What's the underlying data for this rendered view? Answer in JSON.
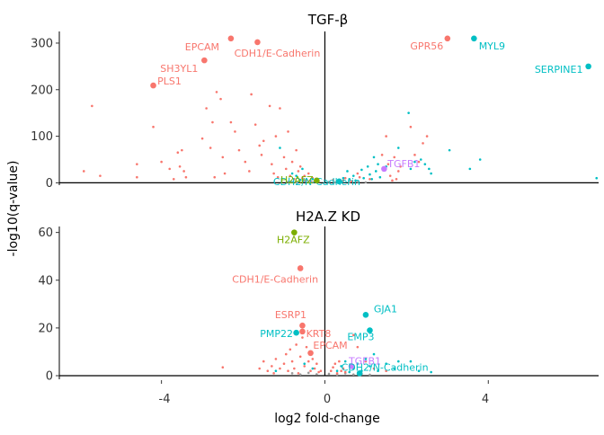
{
  "chart_data": {
    "type": "scatter",
    "xlabel": "log2 fold-change",
    "ylabel": "-log10(q-value)",
    "x_ticks": [
      -4,
      0,
      4
    ],
    "xlim": [
      -6.5,
      6.7
    ],
    "colors": {
      "epithelial": "#F8766D",
      "h2afz": "#7CAE00",
      "mesenchymal": "#00BFC4",
      "tgfb": "#C77CFF",
      "axis": "#000000"
    },
    "panels": [
      {
        "title": "TGF-β",
        "ylim": [
          -5,
          325
        ],
        "y_ticks": [
          0,
          100,
          200,
          300
        ],
        "highlights": [
          {
            "label": "EPCAM",
            "x": -2.3,
            "y": 310,
            "color": "epithelial",
            "dx": -32,
            "dy": 13
          },
          {
            "label": "CDH1/E-Cadherin",
            "x": -1.65,
            "y": 302,
            "color": "epithelial",
            "dx": 22,
            "dy": 16
          },
          {
            "label": "SH3YL1",
            "x": -2.95,
            "y": 263,
            "color": "epithelial",
            "dx": -28,
            "dy": 13
          },
          {
            "label": "PLS1",
            "x": -4.2,
            "y": 209,
            "color": "epithelial",
            "dx": 18,
            "dy": -1
          },
          {
            "label": "GPR56",
            "x": 3.0,
            "y": 310,
            "color": "epithelial",
            "dx": -23,
            "dy": 12
          },
          {
            "label": "MYL9",
            "x": 3.65,
            "y": 310,
            "color": "mesenchymal",
            "dx": 20,
            "dy": 12
          },
          {
            "label": "SERPINE1",
            "x": 6.45,
            "y": 250,
            "color": "mesenchymal",
            "dx": -33,
            "dy": 7
          },
          {
            "label": "TGFB1",
            "x": 1.45,
            "y": 30,
            "color": "tgfb",
            "dx": 22,
            "dy": -2
          },
          {
            "label": "CDH2/N-Cadherin",
            "x": 0.35,
            "y": 3,
            "color": "mesenchymal",
            "dx": -25,
            "dy": 4
          },
          {
            "label": "H2AFZ",
            "x": -0.2,
            "y": 5,
            "color": "h2afz",
            "dx": -22,
            "dy": 3
          }
        ],
        "points_red": [
          [
            -5.7,
            165
          ],
          [
            -5.9,
            25
          ],
          [
            -5.5,
            15
          ],
          [
            -4.6,
            40
          ],
          [
            -4.6,
            12
          ],
          [
            -4.2,
            120
          ],
          [
            -4.0,
            45
          ],
          [
            -3.8,
            30
          ],
          [
            -3.7,
            8
          ],
          [
            -3.6,
            65
          ],
          [
            -3.5,
            70
          ],
          [
            -3.55,
            35
          ],
          [
            -3.45,
            25
          ],
          [
            -3.4,
            12
          ],
          [
            -3.0,
            95
          ],
          [
            -2.9,
            160
          ],
          [
            -2.8,
            75
          ],
          [
            -2.75,
            130
          ],
          [
            -2.7,
            12
          ],
          [
            -2.65,
            195
          ],
          [
            -2.55,
            180
          ],
          [
            -2.5,
            55
          ],
          [
            -2.45,
            20
          ],
          [
            -2.3,
            130
          ],
          [
            -2.2,
            110
          ],
          [
            -2.1,
            70
          ],
          [
            -1.95,
            45
          ],
          [
            -1.85,
            25
          ],
          [
            -1.8,
            190
          ],
          [
            -1.7,
            125
          ],
          [
            -1.6,
            80
          ],
          [
            -1.55,
            60
          ],
          [
            -1.5,
            90
          ],
          [
            -1.35,
            165
          ],
          [
            -1.3,
            40
          ],
          [
            -1.25,
            20
          ],
          [
            -1.2,
            100
          ],
          [
            -1.15,
            12
          ],
          [
            -1.1,
            160
          ],
          [
            -1.0,
            55
          ],
          [
            -0.95,
            30
          ],
          [
            -0.9,
            110
          ],
          [
            -0.85,
            15
          ],
          [
            -0.8,
            45
          ],
          [
            -0.75,
            8
          ],
          [
            -0.7,
            70
          ],
          [
            -0.65,
            25
          ],
          [
            -0.6,
            35
          ],
          [
            -0.55,
            10
          ],
          [
            -0.5,
            15
          ],
          [
            -0.45,
            6
          ],
          [
            -0.4,
            20
          ],
          [
            -0.35,
            4
          ],
          [
            -0.3,
            10
          ],
          [
            -0.25,
            3
          ],
          [
            0.2,
            6
          ],
          [
            0.3,
            3
          ],
          [
            0.45,
            5
          ],
          [
            0.5,
            10
          ],
          [
            0.65,
            3
          ],
          [
            0.8,
            20
          ],
          [
            0.85,
            12
          ],
          [
            1.1,
            8
          ],
          [
            1.4,
            60
          ],
          [
            1.5,
            100
          ],
          [
            1.55,
            40
          ],
          [
            1.6,
            15
          ],
          [
            1.65,
            5
          ],
          [
            1.7,
            55
          ],
          [
            1.75,
            8
          ],
          [
            1.8,
            25
          ],
          [
            1.85,
            35
          ],
          [
            2.1,
            120
          ],
          [
            2.2,
            60
          ],
          [
            2.3,
            45
          ],
          [
            2.4,
            85
          ],
          [
            2.5,
            100
          ]
        ],
        "points_blue": [
          [
            -1.1,
            75
          ],
          [
            -0.8,
            20
          ],
          [
            -0.7,
            15
          ],
          [
            -0.55,
            30
          ],
          [
            -0.6,
            6
          ],
          [
            -0.3,
            8
          ],
          [
            0.45,
            10
          ],
          [
            0.55,
            25
          ],
          [
            0.6,
            8
          ],
          [
            0.7,
            15
          ],
          [
            0.75,
            5
          ],
          [
            0.9,
            28
          ],
          [
            0.95,
            10
          ],
          [
            1.05,
            35
          ],
          [
            1.1,
            18
          ],
          [
            1.15,
            8
          ],
          [
            1.2,
            55
          ],
          [
            1.25,
            25
          ],
          [
            1.3,
            40
          ],
          [
            1.35,
            12
          ],
          [
            1.5,
            35
          ],
          [
            1.8,
            75
          ],
          [
            2.05,
            150
          ],
          [
            2.1,
            30
          ],
          [
            2.2,
            45
          ],
          [
            2.35,
            50
          ],
          [
            2.45,
            40
          ],
          [
            2.55,
            30
          ],
          [
            2.6,
            20
          ],
          [
            3.05,
            70
          ],
          [
            3.55,
            30
          ],
          [
            3.8,
            50
          ],
          [
            6.65,
            10
          ]
        ],
        "points_gray": [
          [
            -0.9,
            2
          ],
          [
            -0.7,
            1
          ],
          [
            -0.5,
            3
          ],
          [
            -0.3,
            1
          ],
          [
            -0.15,
            2
          ],
          [
            0.1,
            2
          ],
          [
            0.25,
            1
          ],
          [
            0.4,
            2
          ],
          [
            0.6,
            1
          ],
          [
            0.8,
            2
          ],
          [
            1.0,
            1
          ]
        ]
      },
      {
        "title": "H2A.Z KD",
        "ylim": [
          -1.5,
          62.5
        ],
        "y_ticks": [
          0,
          20,
          40,
          60
        ],
        "highlights": [
          {
            "label": "H2AFZ",
            "x": -0.75,
            "y": 60,
            "color": "h2afz",
            "dx": -1,
            "dy": 12
          },
          {
            "label": "CDH1/E-Cadherin",
            "x": -0.6,
            "y": 45,
            "color": "epithelial",
            "dx": -28,
            "dy": 16
          },
          {
            "label": "ESRP1",
            "x": -0.55,
            "y": 21,
            "color": "epithelial",
            "dx": -13,
            "dy": -8
          },
          {
            "label": "KRT8",
            "x": -0.55,
            "y": 18.5,
            "color": "epithelial",
            "dx": 18,
            "dy": 6
          },
          {
            "label": "EPCAM",
            "x": -0.35,
            "y": 9.5,
            "color": "epithelial",
            "dx": 22,
            "dy": -5
          },
          {
            "label": "PMP22",
            "x": -0.7,
            "y": 18,
            "color": "mesenchymal",
            "dx": -22,
            "dy": 5
          },
          {
            "label": "GJA1",
            "x": 1.0,
            "y": 25.5,
            "color": "mesenchymal",
            "dx": 22,
            "dy": -3
          },
          {
            "label": "EMP3",
            "x": 1.1,
            "y": 19,
            "color": "mesenchymal",
            "dx": -10,
            "dy": 11
          },
          {
            "label": "TGFB1",
            "x": 0.65,
            "y": 4,
            "color": "tgfb",
            "dx": 15,
            "dy": -2
          },
          {
            "label": "CDH2/N-Cadherin",
            "x": 0.85,
            "y": 1,
            "color": "mesenchymal",
            "dx": 28,
            "dy": -3
          }
        ],
        "points_red": [
          [
            -2.5,
            3.5
          ],
          [
            -1.6,
            3
          ],
          [
            -1.5,
            6
          ],
          [
            -1.4,
            2
          ],
          [
            -1.3,
            4
          ],
          [
            -1.25,
            1
          ],
          [
            -1.2,
            7
          ],
          [
            -1.1,
            3
          ],
          [
            -1.0,
            5
          ],
          [
            -0.95,
            9
          ],
          [
            -0.9,
            2
          ],
          [
            -0.85,
            11
          ],
          [
            -0.8,
            6
          ],
          [
            -0.75,
            3
          ],
          [
            -0.7,
            13
          ],
          [
            -0.65,
            1
          ],
          [
            -0.6,
            8
          ],
          [
            -0.55,
            16
          ],
          [
            -0.5,
            4
          ],
          [
            -0.45,
            12
          ],
          [
            -0.4,
            6
          ],
          [
            -0.35,
            2
          ],
          [
            -0.3,
            7
          ],
          [
            -0.25,
            3
          ],
          [
            -0.2,
            5
          ],
          [
            -0.15,
            1.5
          ],
          [
            -0.1,
            2
          ],
          [
            0.15,
            2
          ],
          [
            0.2,
            3.5
          ],
          [
            0.25,
            5
          ],
          [
            0.3,
            1
          ],
          [
            0.35,
            6
          ],
          [
            0.4,
            2
          ],
          [
            0.45,
            3
          ],
          [
            0.5,
            1.5
          ],
          [
            0.7,
            17
          ],
          [
            0.8,
            12
          ],
          [
            1.0,
            6
          ],
          [
            1.2,
            3
          ],
          [
            1.5,
            2
          ]
        ],
        "points_blue": [
          [
            -1.2,
            2
          ],
          [
            -0.5,
            5
          ],
          [
            -0.3,
            3
          ],
          [
            0.3,
            2
          ],
          [
            0.4,
            4
          ],
          [
            0.5,
            6
          ],
          [
            0.6,
            1.5
          ],
          [
            0.7,
            3
          ],
          [
            0.8,
            5
          ],
          [
            0.9,
            2
          ],
          [
            1.0,
            7
          ],
          [
            1.1,
            4
          ],
          [
            1.2,
            9
          ],
          [
            1.3,
            2
          ],
          [
            1.5,
            5
          ],
          [
            1.7,
            3
          ],
          [
            1.8,
            6
          ],
          [
            2.1,
            6
          ],
          [
            2.3,
            2
          ],
          [
            2.6,
            1.5
          ]
        ],
        "points_gray": [
          [
            -0.8,
            1
          ],
          [
            -0.6,
            0.5
          ],
          [
            -0.4,
            1.2
          ],
          [
            -0.2,
            0.6
          ],
          [
            0.1,
            0.8
          ],
          [
            0.3,
            0.4
          ],
          [
            0.5,
            1
          ],
          [
            0.7,
            0.5
          ],
          [
            0.9,
            0.8
          ],
          [
            1.1,
            0.4
          ]
        ]
      }
    ]
  }
}
